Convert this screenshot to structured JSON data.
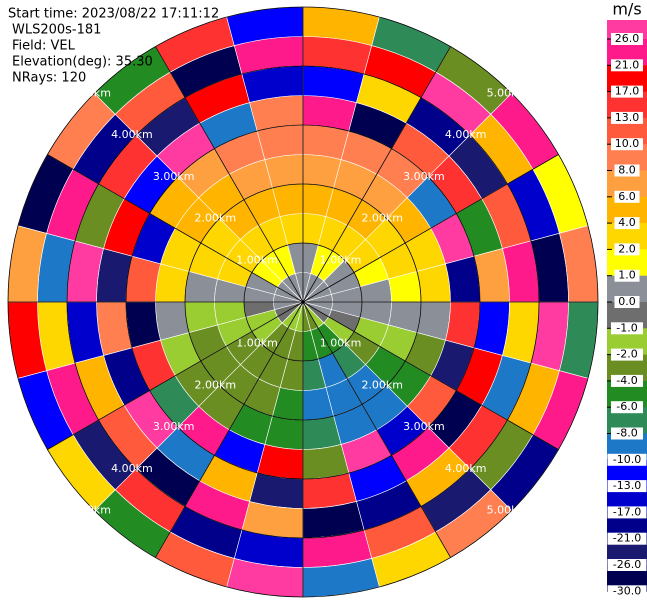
{
  "chart_data": {
    "type": "ppi",
    "info": [
      "Start time: 2023/08/22 17:11:12",
      "WLS200s-181",
      "Field: VEL",
      "Elevation(deg): 35.30",
      "NRays: 120"
    ],
    "azimuth_deg": [
      0,
      15,
      30,
      45,
      60,
      75,
      90,
      105,
      120,
      135,
      150,
      165,
      180,
      195,
      210,
      225,
      240,
      255,
      270,
      285,
      300,
      315,
      330,
      345
    ],
    "range_km": [
      0,
      0.5,
      1,
      1.5,
      2,
      2.5,
      3,
      3.5,
      4,
      4.5,
      5
    ],
    "values": [
      [
        0.5,
        0.5,
        3,
        5,
        7,
        9,
        23,
        -12,
        15,
        5
      ],
      [
        0.5,
        1.5,
        3,
        5,
        7,
        9,
        -28,
        3,
        19,
        -7
      ],
      [
        0.5,
        1.5,
        3,
        5,
        7,
        9,
        11,
        -19,
        28,
        -3
      ],
      [
        0.5,
        0.5,
        3,
        3,
        5,
        -9,
        15,
        -24,
        5,
        23
      ],
      [
        0.5,
        0.5,
        1.5,
        3,
        3,
        28,
        -5,
        11,
        -15,
        1.5
      ],
      [
        0.5,
        0.5,
        0.5,
        1.5,
        3,
        -19,
        7,
        23,
        -28,
        9
      ],
      [
        0.5,
        0.5,
        0.5,
        0.5,
        0.5,
        15,
        -12,
        3,
        28,
        -7
      ],
      [
        0.5,
        -0.5,
        -1.5,
        -1.5,
        -3,
        -24,
        19,
        -9,
        5,
        23
      ],
      [
        -0.5,
        -1.5,
        -3,
        -5,
        -5,
        11,
        -28,
        15,
        -3,
        -19
      ],
      [
        -1.5,
        -5,
        -7,
        -9,
        -9,
        -15,
        23,
        5,
        -24,
        9
      ],
      [
        -3,
        -5,
        -9,
        -9,
        -9,
        28,
        -12,
        -19,
        11,
        3
      ],
      [
        -3,
        -5,
        -7,
        -9,
        -7,
        -3,
        15,
        -28,
        23,
        -9
      ],
      [
        -1.5,
        -3,
        -3,
        -5,
        -5,
        19,
        -24,
        7,
        -15,
        28
      ],
      [
        -1.5,
        -3,
        -3,
        -3,
        -5,
        -12,
        5,
        23,
        -19,
        11
      ],
      [
        -1.5,
        -3,
        -3,
        -3,
        -3,
        23,
        -9,
        -28,
        15,
        -5
      ],
      [
        -0.5,
        -1.5,
        -3,
        -3,
        -3,
        -7,
        28,
        11,
        -24,
        3
      ],
      [
        -0.5,
        -1.5,
        -1.5,
        -3,
        -1.5,
        15,
        -19,
        5,
        23,
        -12
      ],
      [
        0.5,
        -0.5,
        -1.5,
        -1.5,
        0.5,
        -28,
        9,
        -15,
        3,
        19
      ],
      [
        0.5,
        0.5,
        0.5,
        0.5,
        3,
        11,
        -24,
        28,
        -9,
        7
      ],
      [
        0.5,
        0.5,
        3,
        3,
        3,
        -15,
        19,
        -3,
        23,
        -28
      ],
      [
        0.5,
        1.5,
        3,
        3,
        5,
        5,
        -12,
        15,
        -19,
        9
      ],
      [
        0.5,
        1.5,
        3,
        5,
        5,
        7,
        28,
        -24,
        11,
        -5
      ],
      [
        0.5,
        1.5,
        3,
        5,
        7,
        9,
        -9,
        19,
        -28,
        15
      ],
      [
        0.5,
        0.5,
        3,
        5,
        7,
        9,
        9,
        -15,
        23,
        -12
      ]
    ],
    "range_rings": [
      {
        "value": 1,
        "label": "1.00km"
      },
      {
        "value": 2,
        "label": "2.00km"
      },
      {
        "value": 3,
        "label": "3.00km"
      },
      {
        "value": 4,
        "label": "4.00km"
      },
      {
        "value": 5,
        "label": "5.00km"
      }
    ],
    "colorbar": {
      "title": "m/s",
      "ticks": [
        {
          "value": 26,
          "label": "26.0"
        },
        {
          "value": 21,
          "label": "21.0"
        },
        {
          "value": 17,
          "label": "17.0"
        },
        {
          "value": 13,
          "label": "13.0"
        },
        {
          "value": 10,
          "label": "10.0"
        },
        {
          "value": 8,
          "label": "8.0"
        },
        {
          "value": 6,
          "label": "6.0"
        },
        {
          "value": 4,
          "label": "4.0"
        },
        {
          "value": 2,
          "label": "2.0"
        },
        {
          "value": 1,
          "label": "1.0"
        },
        {
          "value": 0,
          "label": "0.0"
        },
        {
          "value": -1,
          "label": "-1.0"
        },
        {
          "value": -2,
          "label": "-2.0"
        },
        {
          "value": -4,
          "label": "-4.0"
        },
        {
          "value": -6,
          "label": "-6.0"
        },
        {
          "value": -8,
          "label": "-8.0"
        },
        {
          "value": -10,
          "label": "-10.0"
        },
        {
          "value": -13,
          "label": "-13.0"
        },
        {
          "value": -17,
          "label": "-17.0"
        },
        {
          "value": -21,
          "label": "-21.0"
        },
        {
          "value": -26,
          "label": "-26.0"
        },
        {
          "value": -30,
          "label": "-30.0"
        }
      ],
      "colors": [
        "#ff3aa0",
        "#ff1a8c",
        "#ff0000",
        "#ff3232",
        "#ff5a3c",
        "#ff7f50",
        "#ffa040",
        "#ffb400",
        "#ffd700",
        "#ffff00",
        "#8a8f98",
        "#6e6e6e",
        "#9acd32",
        "#6b8e23",
        "#228b22",
        "#2e8b57",
        "#1e78c8",
        "#0000ff",
        "#0000cd",
        "#00008b",
        "#191970",
        "#000050"
      ]
    }
  }
}
